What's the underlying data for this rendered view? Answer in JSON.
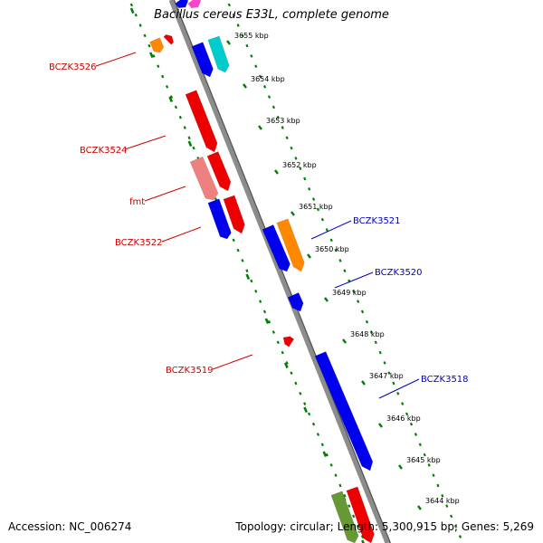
{
  "title": "Bacillus cereus E33L, complete genome",
  "accession": "Accession: NC_006274",
  "summary": "Topology: circular; Length: 5,300,915 bp; Genes: 5,269",
  "colors": {
    "backbone": "#8c8c8c",
    "tick_track": "#008000",
    "forward_label": "#0000cc",
    "reverse_label": "#cc0000",
    "blue_gene": "#0000ee",
    "red_gene": "#ee0000",
    "orange_gene": "#ff8800",
    "cyan_gene": "#00cccc",
    "pink_gene": "#ee7777",
    "olive_gene": "#669933",
    "magenta_gene": "#ff44cc"
  },
  "kbp_labels": [
    "3655 kbp",
    "3654 kbp",
    "3653 kbp",
    "3652 kbp",
    "3651 kbp",
    "3650 kbp",
    "3649 kbp",
    "3648 kbp",
    "3647 kbp",
    "3646 kbp",
    "3645 kbp",
    "3644 kbp"
  ],
  "gene_labels": [
    {
      "text": "BCZK3526",
      "strand": "reverse"
    },
    {
      "text": "BCZK3524",
      "strand": "reverse"
    },
    {
      "text": "fmt",
      "strand": "reverse"
    },
    {
      "text": "BCZK3522",
      "strand": "reverse"
    },
    {
      "text": "BCZK3519",
      "strand": "reverse"
    },
    {
      "text": "BCZK3521",
      "strand": "forward"
    },
    {
      "text": "BCZK3520",
      "strand": "forward"
    },
    {
      "text": "BCZK3518",
      "strand": "forward"
    }
  ]
}
